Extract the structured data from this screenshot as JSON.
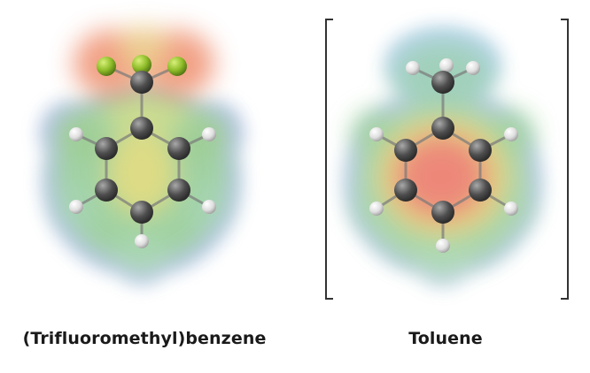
{
  "molecules": [
    {
      "name": "(Trifluoromethyl)benzene",
      "substituent": "CF3",
      "halogen_color": "#8fbd2a"
    },
    {
      "name": "Toluene",
      "substituent": "CH3",
      "bracketed": true
    }
  ],
  "colors": {
    "negative": "#ff3b3b",
    "neutral": "#7ed36a",
    "positive": "#4a7fe0",
    "carbon": "#4a4a4a",
    "hydrogen": "#ececec",
    "bracket": "#333333"
  }
}
